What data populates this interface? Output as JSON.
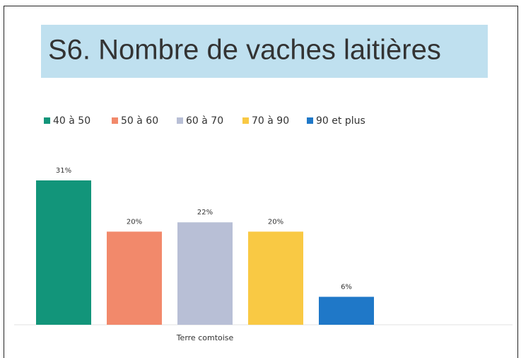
{
  "chart_data": {
    "type": "bar",
    "title": "S6. Nombre de vaches laitières",
    "categories": [
      "Terre comtoise"
    ],
    "series": [
      {
        "name": "40 à 50",
        "color": "#12957a",
        "values": [
          31
        ],
        "value_labels": [
          "31%"
        ]
      },
      {
        "name": "50 à 60",
        "color": "#f2896b",
        "values": [
          20
        ],
        "value_labels": [
          "20%"
        ]
      },
      {
        "name": "60 à 70",
        "color": "#b8bfd6",
        "values": [
          22
        ],
        "value_labels": [
          "22%"
        ]
      },
      {
        "name": "70 à 90",
        "color": "#f9c944",
        "values": [
          20
        ],
        "value_labels": [
          "20%"
        ]
      },
      {
        "name": "90 et plus",
        "color": "#1f78c8",
        "values": [
          6
        ],
        "value_labels": [
          "6%"
        ]
      }
    ],
    "legend": "top"
  }
}
